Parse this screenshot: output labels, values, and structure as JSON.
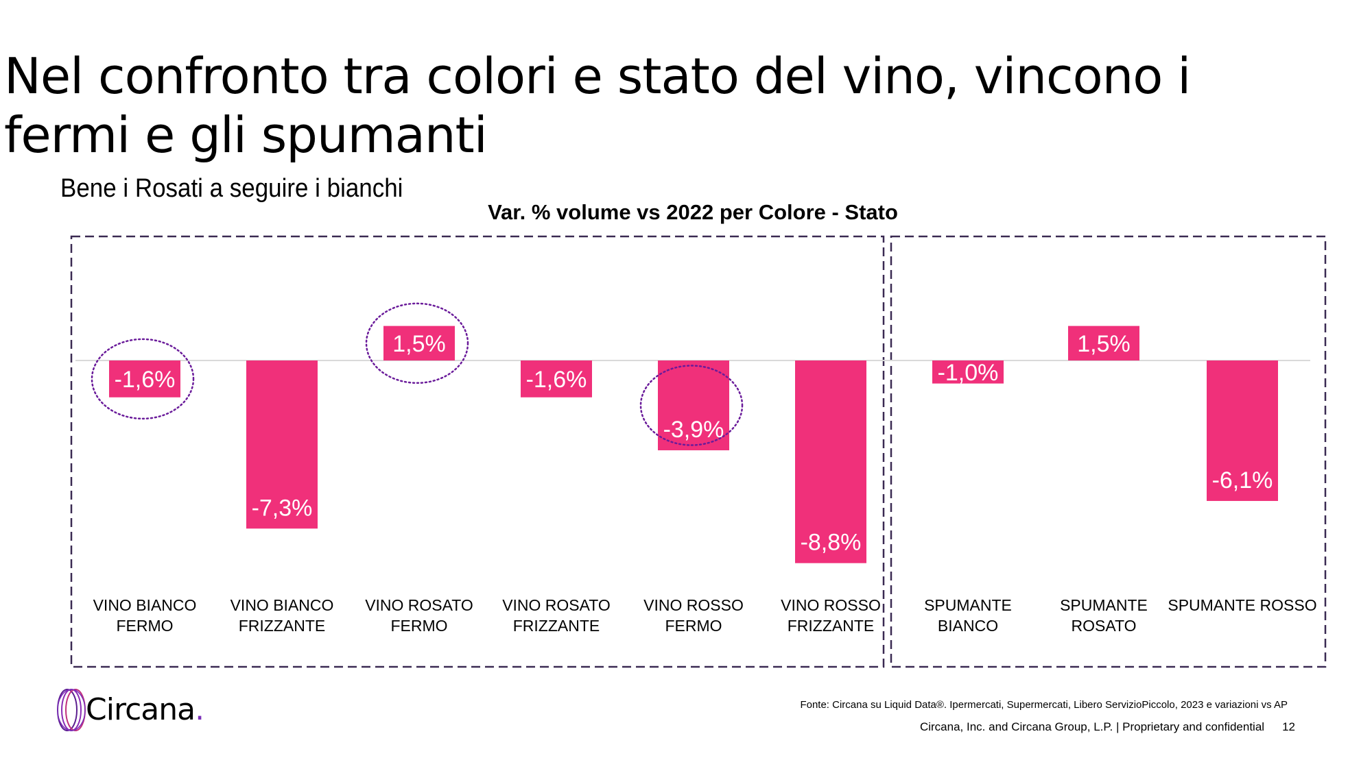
{
  "slide": {
    "title": "Nel confronto tra colori e stato del vino, vincono i fermi e gli spumanti",
    "subtitle": "Bene i Rosati a seguire i bianchi",
    "source_note": "Fonte: Circana su Liquid Data®.  Ipermercati, Supermercati, Libero ServizioPiccolo, 2023 e variazioni vs AP",
    "footer": "Circana, Inc. and Circana Group, L.P. |  Proprietary and confidential",
    "page_number": "12",
    "logo_text": "Circana",
    "logo_dot": "."
  },
  "chart_data": {
    "type": "bar",
    "title": "Var. % volume vs 2022 per Colore - Stato",
    "categories": [
      [
        "VINO BIANCO",
        "FERMO"
      ],
      [
        "VINO BIANCO",
        "FRIZZANTE"
      ],
      [
        "VINO ROSATO",
        "FERMO"
      ],
      [
        "VINO ROSATO",
        "FRIZZANTE"
      ],
      [
        "VINO ROSSO",
        "FERMO"
      ],
      [
        "VINO ROSSO",
        "FRIZZANTE"
      ],
      [
        "SPUMANTE",
        "BIANCO"
      ],
      [
        "SPUMANTE",
        "ROSATO"
      ],
      [
        "SPUMANTE ROSSO"
      ]
    ],
    "values": [
      -1.6,
      -7.3,
      1.5,
      -1.6,
      -3.9,
      -8.8,
      -1.0,
      1.5,
      -6.1
    ],
    "data_labels": [
      "-1,6%",
      "-7,3%",
      "1,5%",
      "-1,6%",
      "-3,9%",
      "-8,8%",
      "-1,0%",
      "1,5%",
      "-6,1%"
    ],
    "highlighted": [
      "VINO BIANCO FERMO",
      "VINO ROSATO FERMO",
      "VINO ROSSO FERMO"
    ],
    "groups": [
      "VINO",
      "SPUMANTE"
    ],
    "bar_color": "#f0307a",
    "highlight_color": "#6a1b9a",
    "frame_color": "#3a2a52",
    "ylim": [
      -10,
      2
    ],
    "grid": false
  }
}
